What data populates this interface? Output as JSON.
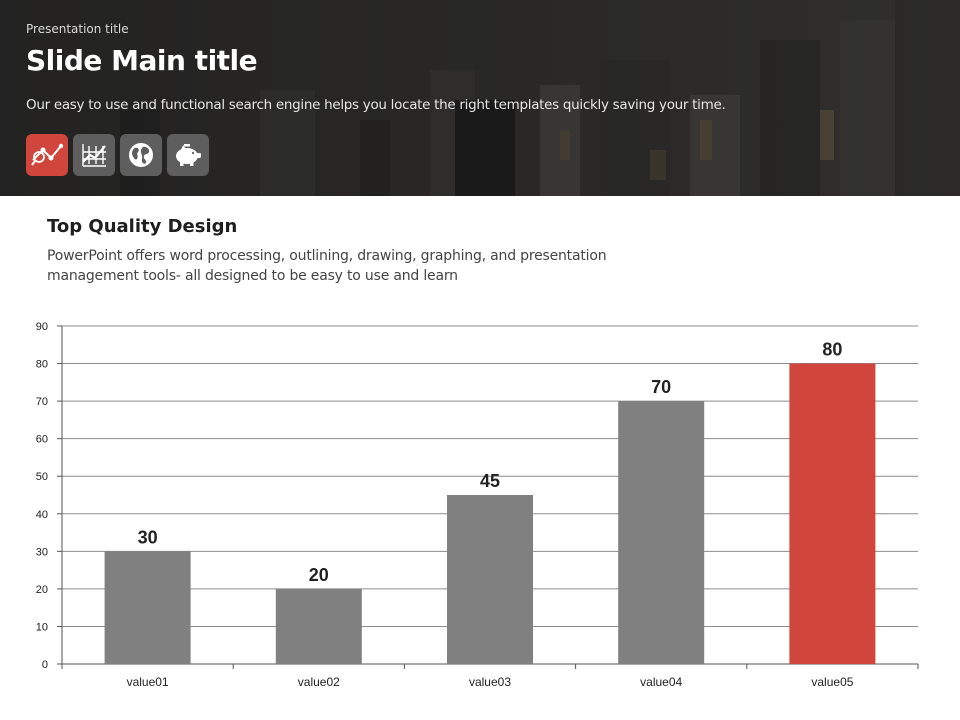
{
  "header": {
    "presentation_title": "Presentation title",
    "main_title": "Slide Main title",
    "subtitle": "Our easy to use and functional search engine helps you locate the right templates quickly saving your time.",
    "icons": [
      {
        "name": "chart-analysis-icon",
        "active": true
      },
      {
        "name": "stock-graph-icon",
        "active": false
      },
      {
        "name": "globe-icon",
        "active": false
      },
      {
        "name": "piggy-bank-icon",
        "active": false
      }
    ]
  },
  "section": {
    "title": "Top Quality Design",
    "desc_line1": "PowerPoint offers word processing, outlining, drawing, graphing, and presentation",
    "desc_line2": "management tools- all designed to be easy to use and learn"
  },
  "colors": {
    "accent": "#d0463c",
    "bar": "#808080",
    "grid": "#8c8c8c"
  },
  "chart_data": {
    "type": "bar",
    "categories": [
      "value01",
      "value02",
      "value03",
      "value04",
      "value05"
    ],
    "values": [
      30,
      20,
      45,
      70,
      80
    ],
    "highlight_index": 4,
    "ylim": [
      0,
      90
    ],
    "yticks": [
      0,
      10,
      20,
      30,
      40,
      50,
      60,
      70,
      80,
      90
    ],
    "grid": true,
    "legend": "none",
    "title": "",
    "xlabel": "",
    "ylabel": ""
  }
}
